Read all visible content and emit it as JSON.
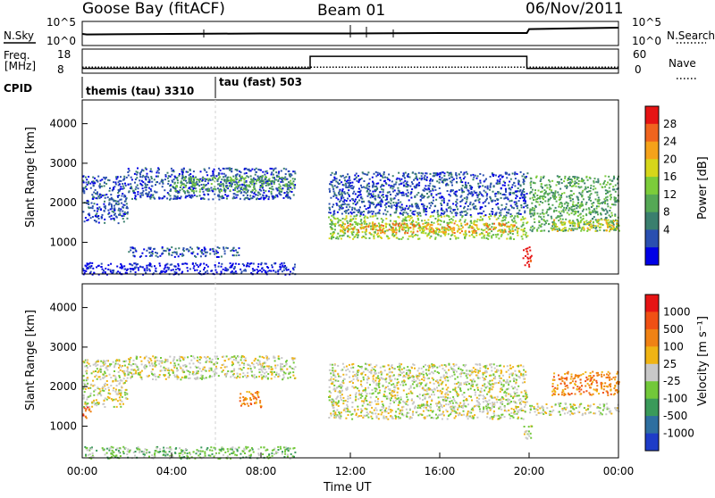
{
  "header": {
    "radar": "Goose Bay (fitACF)",
    "beam": "Beam 01",
    "date": "06/Nov/2011"
  },
  "colors": {
    "ground_scatter": "#c8c8c8",
    "axis": "#000000"
  },
  "chart_data": [
    {
      "type": "line",
      "name": "nsky-nsearch-panel",
      "left_label": "N.Sky",
      "right_label": "N.Search",
      "left_ticks": [
        "10^5",
        "10^0"
      ],
      "right_ticks": [
        "10^5",
        "10^0"
      ],
      "series": [
        {
          "points": [
            [
              0,
              2.4
            ],
            [
              0.2,
              2.3
            ],
            [
              4,
              2.4
            ],
            [
              8,
              2.5
            ],
            [
              12,
              2.5
            ],
            [
              16,
              2.6
            ],
            [
              19.9,
              2.6
            ],
            [
              20,
              3.4
            ],
            [
              24,
              3.7
            ]
          ]
        }
      ],
      "ylim": [
        0,
        5
      ]
    },
    {
      "type": "line",
      "name": "freq-nave-panel",
      "left_label": "Freq. [MHz]",
      "right_label": "Nave",
      "left_ticks": [
        "18",
        "8"
      ],
      "right_ticks": [
        "60",
        "0"
      ],
      "series": [
        {
          "points": [
            [
              0,
              10
            ],
            [
              10.2,
              10
            ],
            [
              10.2,
              15
            ],
            [
              19.9,
              15
            ],
            [
              19.9,
              10
            ],
            [
              24,
              10
            ]
          ]
        },
        {
          "style": "dotted",
          "points": [
            [
              0,
              10.5
            ],
            [
              24,
              10.5
            ]
          ]
        }
      ],
      "ylim": [
        8,
        18
      ]
    },
    {
      "type": "table",
      "name": "cpid-row",
      "label": "CPID",
      "segments": [
        {
          "text": "themis (tau) 3310",
          "start": 0
        },
        {
          "text": "tau (fast) 503",
          "start": 6
        }
      ]
    },
    {
      "type": "heatmap",
      "name": "power-panel",
      "ylabel": "Slant Range [km]",
      "ylim": [
        200,
        4600
      ],
      "xlim": [
        0,
        24
      ],
      "y_ticks": [
        1000,
        2000,
        3000,
        4000
      ],
      "colorbar": {
        "label": "Power [dB]",
        "ticks": [
          "28",
          "24",
          "20",
          "16",
          "12",
          "8",
          "4"
        ],
        "colors": [
          "#0000e6",
          "#2a4fb0",
          "#3a7f6e",
          "#55a855",
          "#7ccc3a",
          "#d6d61a",
          "#f5a21a",
          "#f0641e",
          "#e61414"
        ]
      },
      "regions": [
        {
          "t": [
            0,
            2
          ],
          "r": [
            1500,
            2700
          ],
          "c": 1
        },
        {
          "t": [
            2,
            9.5
          ],
          "r": [
            2100,
            2900
          ],
          "c": 1
        },
        {
          "t": [
            4,
            9.5
          ],
          "r": [
            2300,
            2700
          ],
          "c": 3
        },
        {
          "t": [
            2,
            7
          ],
          "r": [
            650,
            900
          ],
          "c": 1
        },
        {
          "t": [
            0,
            9.5
          ],
          "r": [
            200,
            500
          ],
          "c": 0
        },
        {
          "t": [
            11,
            19.9
          ],
          "r": [
            1700,
            2800
          ],
          "c": 1
        },
        {
          "t": [
            11,
            19.9
          ],
          "r": [
            1100,
            1700
          ],
          "c": 4
        },
        {
          "t": [
            11.5,
            19.5
          ],
          "r": [
            1250,
            1500
          ],
          "c": 6
        },
        {
          "t": [
            20,
            24
          ],
          "r": [
            1300,
            2700
          ],
          "c": 3
        },
        {
          "t": [
            21,
            24
          ],
          "r": [
            1300,
            1600
          ],
          "c": 5
        },
        {
          "t": [
            19.7,
            20.1
          ],
          "r": [
            400,
            900
          ],
          "c": 8
        }
      ]
    },
    {
      "type": "heatmap",
      "name": "velocity-panel",
      "ylabel": "Slant Range [km]",
      "xlabel": "Time UT",
      "ylim": [
        200,
        4600
      ],
      "xlim": [
        0,
        24
      ],
      "y_ticks": [
        1000,
        2000,
        3000,
        4000
      ],
      "x_ticks": [
        "00:00",
        "04:00",
        "08:00",
        "12:00",
        "16:00",
        "20:00",
        "00:00"
      ],
      "x_tick_values": [
        0,
        4,
        8,
        12,
        16,
        20,
        24
      ],
      "colorbar": {
        "label": "Velocity [m s⁻¹]",
        "ticks": [
          "1000",
          "500",
          "100",
          "25",
          "-25",
          "-100",
          "-500",
          "-1000"
        ],
        "colors": [
          "#1e3cc8",
          "#2e6fa0",
          "#3a9a5a",
          "#72c83a",
          "#c8c8c8",
          "#f0b414",
          "#f08214",
          "#f05014",
          "#e61414"
        ]
      },
      "regions": [
        {
          "t": [
            0,
            2
          ],
          "r": [
            1500,
            2700
          ],
          "c": 4
        },
        {
          "t": [
            2,
            9.5
          ],
          "r": [
            2200,
            2800
          ],
          "c": 4
        },
        {
          "t": [
            0,
            0.4
          ],
          "r": [
            1200,
            1500
          ],
          "c": 7
        },
        {
          "t": [
            7,
            8
          ],
          "r": [
            1500,
            1900
          ],
          "c": 6
        },
        {
          "t": [
            0,
            9.5
          ],
          "r": [
            200,
            500
          ],
          "c": 3
        },
        {
          "t": [
            11,
            19.9
          ],
          "r": [
            1200,
            2600
          ],
          "c": 4
        },
        {
          "t": [
            20,
            24
          ],
          "r": [
            1300,
            1600
          ],
          "c": 4
        },
        {
          "t": [
            21,
            24
          ],
          "r": [
            1800,
            2400
          ],
          "c": 6
        },
        {
          "t": [
            19.7,
            20.1
          ],
          "r": [
            700,
            1100
          ],
          "c": 4
        }
      ]
    }
  ]
}
